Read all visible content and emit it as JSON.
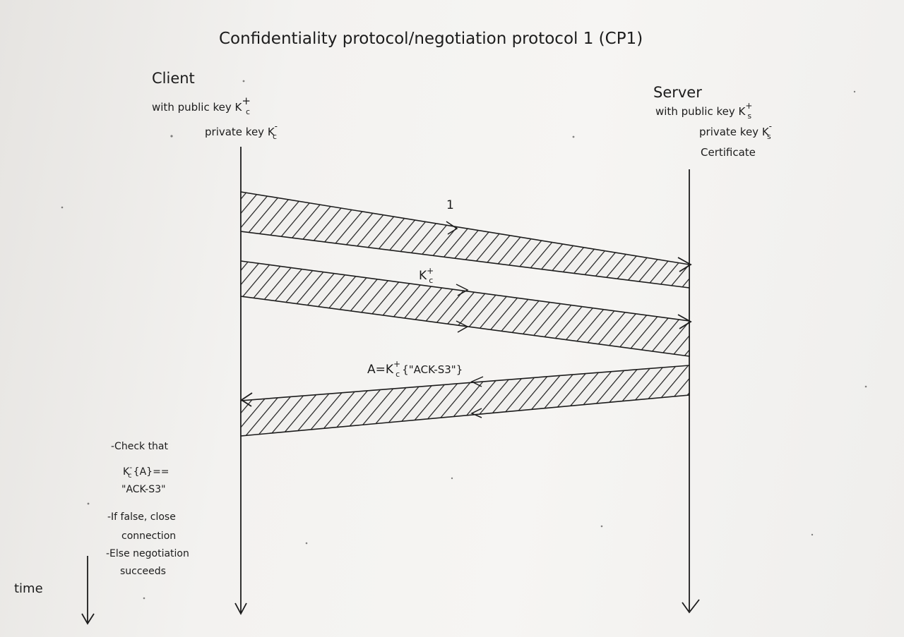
{
  "diagram": {
    "title": "Confidentiality protocol/negotiation protocol 1 (CP1)",
    "client": {
      "heading": "Client",
      "line1": "with public key K",
      "line1_sub": "c",
      "line1_sup": "+",
      "line2": "private key K",
      "line2_sub": "c",
      "line2_sup": "-"
    },
    "server": {
      "heading": "Server",
      "line1": "with public key K",
      "line1_sub": "s",
      "line1_sup": "+",
      "line2": "private key K",
      "line2_sub": "s",
      "line2_sup": "-",
      "line3": "Certificate"
    },
    "messages": [
      {
        "label": "1"
      },
      {
        "label": "K",
        "label_sub": "c",
        "label_sup": "+"
      },
      {
        "label": "A=K",
        "label_sub": "c",
        "label_sup": "+",
        "label_rest": "{\"ACK-S3\"}"
      }
    ],
    "client_notes": [
      "-Check that",
      "K",
      "\"ACK-S3\"",
      "-If false, close",
      "connection",
      "-Else negotiation",
      "succeeds"
    ],
    "client_note_check": {
      "sub": "c",
      "sup": "-",
      "rest": "{A}=="
    },
    "time_label": "time",
    "colors": {
      "ink": "#1c1c1c",
      "paper": "#f3f2f0"
    }
  }
}
